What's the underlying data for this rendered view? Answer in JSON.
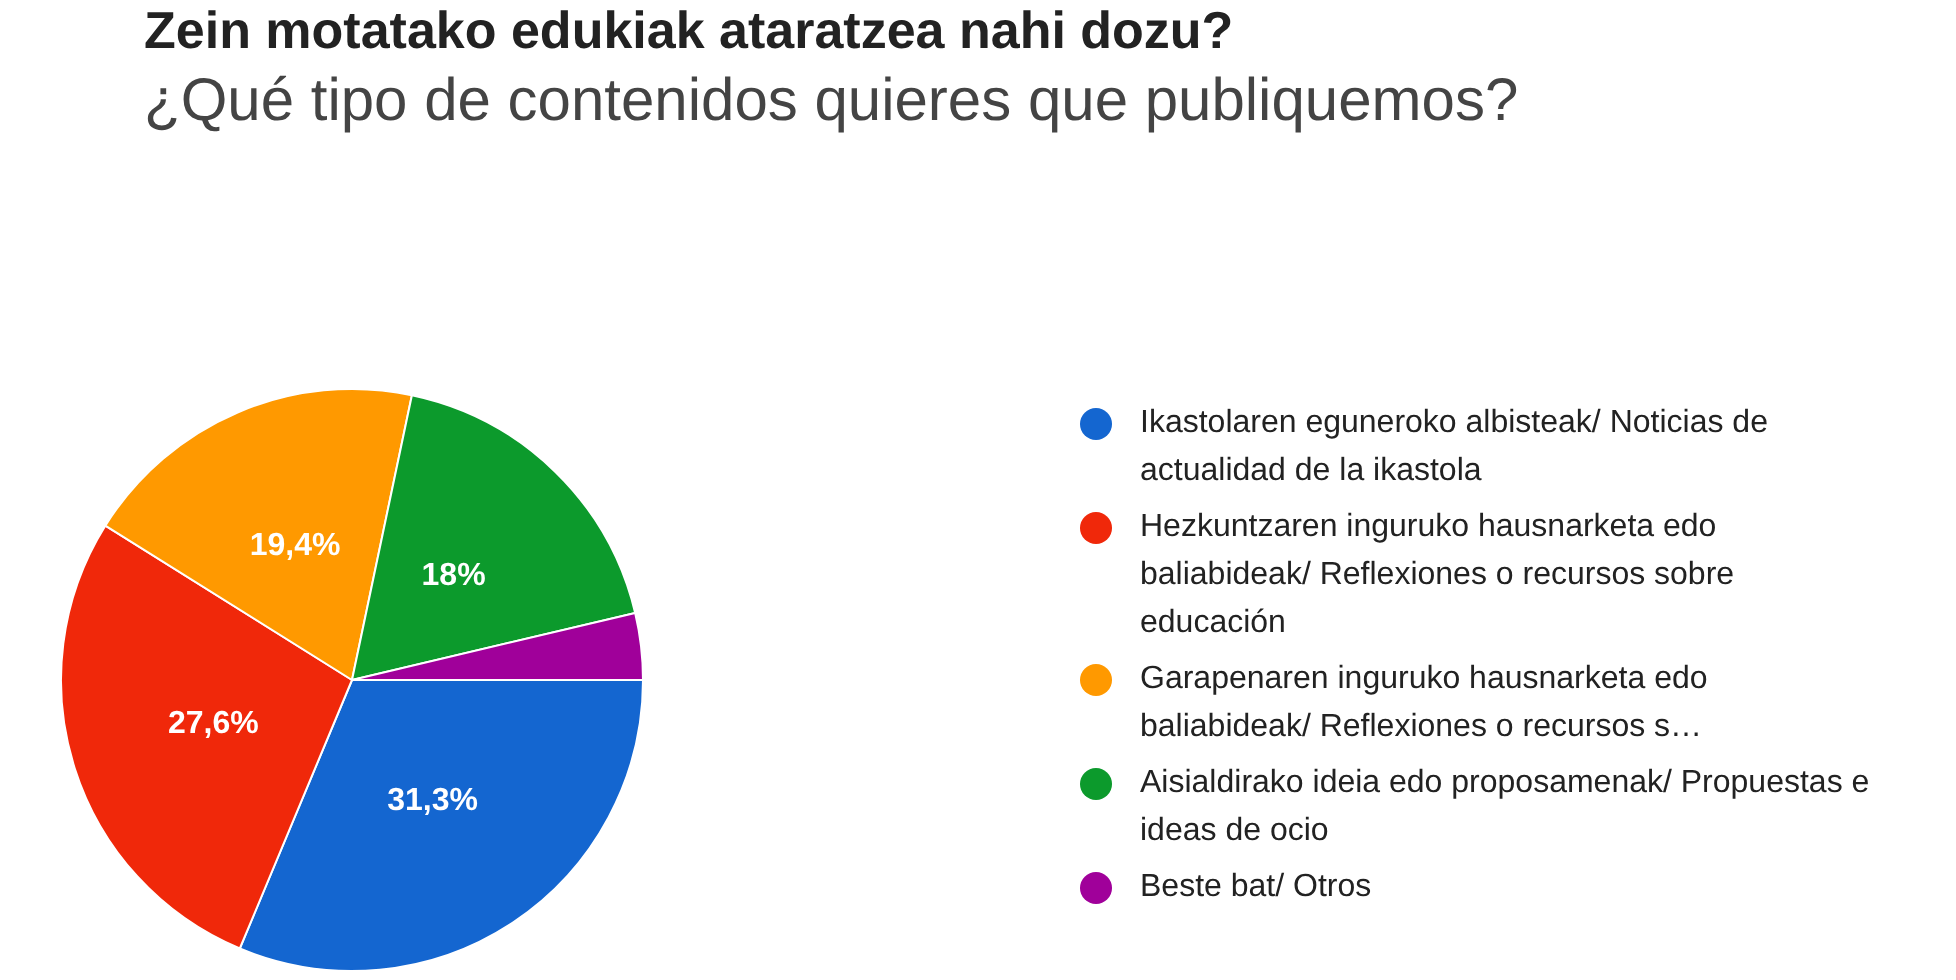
{
  "chart_data": {
    "type": "pie",
    "title": "Zein motatako edukiak ataratzea nahi dozu?",
    "subtitle": "¿Qué tipo de contenidos quieres que publiquemos?",
    "categories": [
      "Ikastolaren eguneroko albisteak/ Noticias de actualidad de la ikastola",
      "Hezkuntzaren inguruko hausnarketa edo baliabideak/ Reflexiones o recursos sobre educación",
      "Garapenaren inguruko hausnarketa edo baliabideak/ Reflexiones o recursos s…",
      "Aisialdirako ideia edo proposamenak/ Propuestas e ideas de ocio",
      "Beste bat/ Otros"
    ],
    "values": [
      31.3,
      27.6,
      19.4,
      18,
      3.7
    ],
    "colors": [
      "#1466d0",
      "#f0280a",
      "#ff9900",
      "#0c9a2c",
      "#a0009a"
    ],
    "value_labels": [
      "31,3%",
      "27,6%",
      "19,4%",
      "18%",
      null
    ],
    "legend": "right"
  }
}
